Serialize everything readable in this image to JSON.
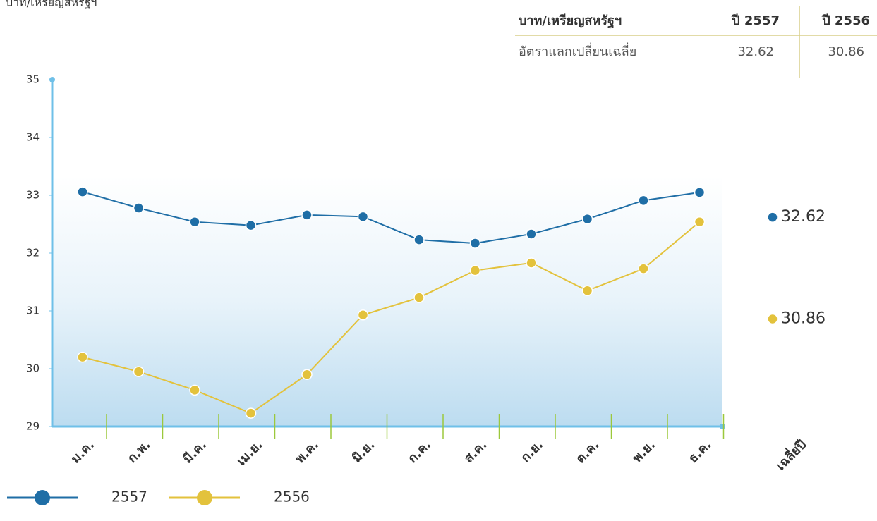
{
  "chart_data": {
    "type": "line",
    "y_label": "บาท/เหรียญสหรัฐฯ",
    "categories": [
      "ม.ค.",
      "ก.พ.",
      "มี.ค.",
      "เม.ย.",
      "พ.ค.",
      "มิ.ย.",
      "ก.ค.",
      "ส.ค.",
      "ก.ย.",
      "ต.ค.",
      "พ.ย.",
      "ธ.ค."
    ],
    "average_label": "เฉลี่ยปี",
    "series": [
      {
        "name": "2557",
        "color": "#1f6ea6",
        "values": [
          33.06,
          32.78,
          32.54,
          32.48,
          32.66,
          32.63,
          32.23,
          32.17,
          32.33,
          32.59,
          32.91,
          33.05
        ],
        "average": 32.62
      },
      {
        "name": "2556",
        "color": "#e3c23c",
        "values": [
          30.2,
          29.95,
          29.63,
          29.23,
          29.9,
          30.93,
          31.23,
          31.7,
          31.83,
          31.35,
          31.73,
          32.54
        ],
        "average": 30.86
      }
    ],
    "ylim": [
      29,
      35
    ],
    "yticks": [
      29,
      30,
      31,
      32,
      33,
      34,
      35
    ],
    "grid": false
  },
  "table": {
    "header": [
      "บาท/เหรียญสหรัฐฯ",
      "ปี 2557",
      "ปี 2556"
    ],
    "rows": [
      [
        "อัตราแลกเปลี่ยนเฉลี่ย",
        "32.62",
        "30.86"
      ]
    ]
  }
}
